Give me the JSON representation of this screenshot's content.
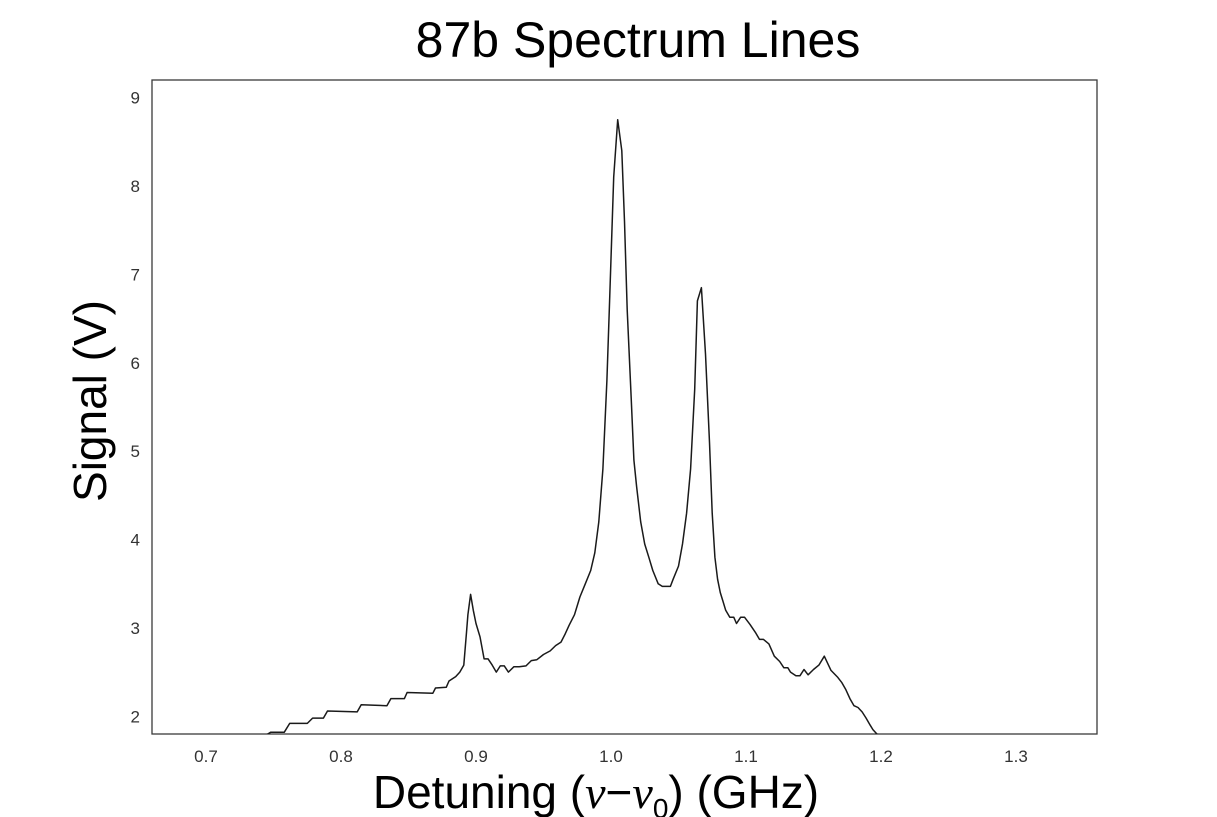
{
  "chart_data": {
    "type": "line",
    "title": "87b Spectrum Lines",
    "xlabel_prefix": "Detuning (",
    "xlabel_nu": "ν",
    "xlabel_minus": "−",
    "xlabel_nu0": "ν",
    "xlabel_sub": "0",
    "xlabel_suffix": ") (GHz)",
    "ylabel": "Signal (V)",
    "xlim": [
      0.66,
      1.36
    ],
    "ylim": [
      1.8,
      9.2
    ],
    "xticks": [
      0.7,
      0.8,
      0.9,
      1.0,
      1.1,
      1.2,
      1.3
    ],
    "xtick_labels": [
      "0.7",
      "0.8",
      "0.9",
      "1.0",
      "1.1",
      "1.2",
      "1.3"
    ],
    "yticks": [
      2,
      3,
      4,
      5,
      6,
      7,
      8,
      9
    ],
    "ytick_labels": [
      "2",
      "3",
      "4",
      "5",
      "6",
      "7",
      "8",
      "9"
    ],
    "grid": false,
    "line_color": "#1a1a1a",
    "series": [
      {
        "x": [
          0.735,
          0.748,
          0.758,
          0.762,
          0.775,
          0.779,
          0.787,
          0.79,
          0.812,
          0.815,
          0.834,
          0.837,
          0.847,
          0.849,
          0.868,
          0.87,
          0.878,
          0.88,
          0.885,
          0.888,
          0.891,
          0.893,
          0.894,
          0.896,
          0.898,
          0.9,
          0.903,
          0.906,
          0.909,
          0.912,
          0.915,
          0.918,
          0.921,
          0.924,
          0.928,
          0.932,
          0.937,
          0.941,
          0.945,
          0.95,
          0.955,
          0.959,
          0.963,
          0.966,
          0.969,
          0.973,
          0.977,
          0.981,
          0.985,
          0.988,
          0.991,
          0.994,
          0.997,
          0.999,
          1.002,
          1.005,
          1.008,
          1.01,
          1.012,
          1.015,
          1.017,
          1.019,
          1.022,
          1.025,
          1.028,
          1.031,
          1.035,
          1.038,
          1.044,
          1.046,
          1.05,
          1.053,
          1.056,
          1.059,
          1.062,
          1.064,
          1.067,
          1.07,
          1.073,
          1.075,
          1.077,
          1.079,
          1.081,
          1.083,
          1.085,
          1.088,
          1.091,
          1.093,
          1.096,
          1.099,
          1.103,
          1.107,
          1.11,
          1.113,
          1.117,
          1.121,
          1.125,
          1.128,
          1.131,
          1.133,
          1.137,
          1.14,
          1.143,
          1.146,
          1.15,
          1.154,
          1.158,
          1.163,
          1.168,
          1.171,
          1.174,
          1.177,
          1.18,
          1.183,
          1.186,
          1.189,
          1.192,
          1.194,
          1.197,
          1.2,
          1.203,
          1.206,
          1.21,
          1.214,
          1.218,
          1.222,
          1.226,
          1.23,
          1.235,
          1.24,
          1.243
        ],
        "y": [
          1.7,
          1.82,
          1.82,
          1.92,
          1.92,
          1.98,
          1.98,
          2.06,
          2.05,
          2.13,
          2.12,
          2.2,
          2.2,
          2.27,
          2.26,
          2.32,
          2.33,
          2.4,
          2.45,
          2.5,
          2.58,
          2.95,
          3.15,
          3.38,
          3.2,
          3.05,
          2.9,
          2.65,
          2.65,
          2.58,
          2.5,
          2.57,
          2.57,
          2.5,
          2.56,
          2.56,
          2.57,
          2.63,
          2.64,
          2.7,
          2.74,
          2.8,
          2.84,
          2.93,
          3.03,
          3.15,
          3.35,
          3.5,
          3.65,
          3.85,
          4.2,
          4.8,
          5.8,
          6.7,
          8.1,
          8.75,
          8.4,
          7.6,
          6.6,
          5.6,
          4.9,
          4.6,
          4.2,
          3.95,
          3.8,
          3.65,
          3.5,
          3.47,
          3.47,
          3.55,
          3.7,
          3.95,
          4.3,
          4.8,
          5.7,
          6.7,
          6.85,
          6.1,
          5.1,
          4.3,
          3.8,
          3.55,
          3.4,
          3.3,
          3.2,
          3.12,
          3.12,
          3.05,
          3.12,
          3.12,
          3.04,
          2.95,
          2.87,
          2.87,
          2.82,
          2.68,
          2.62,
          2.55,
          2.55,
          2.5,
          2.46,
          2.46,
          2.53,
          2.47,
          2.53,
          2.58,
          2.68,
          2.52,
          2.44,
          2.38,
          2.3,
          2.2,
          2.12,
          2.1,
          2.05,
          1.98,
          1.9,
          1.85,
          1.8,
          1.78,
          1.75,
          1.7,
          1.72,
          1.73,
          1.76,
          1.7,
          1.72,
          1.74,
          1.7,
          1.72,
          1.75
        ]
      }
    ]
  }
}
